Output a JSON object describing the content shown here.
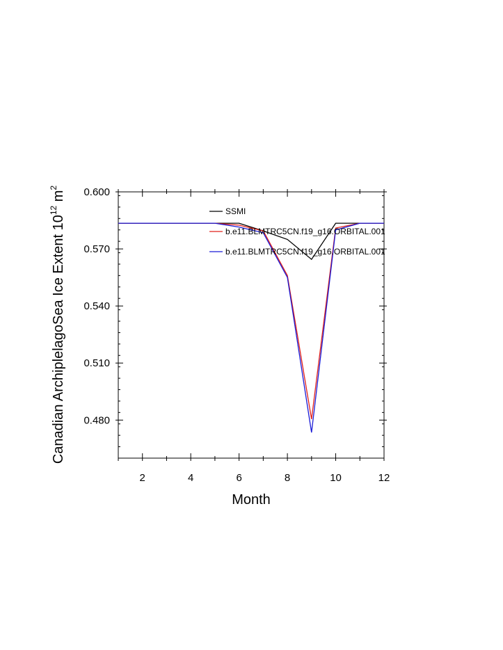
{
  "chart_data": {
    "type": "line",
    "title": "",
    "xlabel": "Month",
    "ylabel": "Canadian ArchiplelagoSea Ice Extent 10",
    "ylabel_sup": "12",
    "ylabel_unit": " m",
    "ylabel_unit_sup": "2",
    "xlim": [
      1,
      12
    ],
    "ylim": [
      0.46,
      0.6
    ],
    "x_ticks": [
      2,
      4,
      6,
      8,
      10,
      12
    ],
    "x_tick_labels": [
      "2",
      "4",
      "6",
      "8",
      "10",
      "12"
    ],
    "y_ticks": [
      0.48,
      0.51,
      0.54,
      0.57,
      0.6
    ],
    "y_tick_labels": [
      "0.480",
      "0.510",
      "0.540",
      "0.570",
      "0.600"
    ],
    "grid": false,
    "legend_position": "top-right",
    "x": [
      1,
      2,
      3,
      4,
      5,
      6,
      7,
      8,
      9,
      10,
      11,
      12
    ],
    "series": [
      {
        "name": "SSMI",
        "color": "#000000",
        "values": [
          0.5835,
          0.5835,
          0.5835,
          0.5835,
          0.5835,
          0.5835,
          0.5795,
          0.575,
          0.5645,
          0.5835,
          0.5835,
          0.5835
        ]
      },
      {
        "name": "b.e11.BLMTRC5CN.f19_g16.ORBITAL.001",
        "color": "#e0201b",
        "values": [
          0.5835,
          0.5835,
          0.5835,
          0.5835,
          0.5835,
          0.5825,
          0.5795,
          0.556,
          0.4805,
          0.581,
          0.5835,
          0.5835
        ]
      },
      {
        "name": "b.e11.BLMTRC5CN.f19_g16.ORBITAL.001",
        "color": "#1a1ad6",
        "values": [
          0.5835,
          0.5835,
          0.5835,
          0.5835,
          0.5835,
          0.5815,
          0.5785,
          0.555,
          0.4735,
          0.58,
          0.5835,
          0.5835
        ]
      }
    ]
  }
}
